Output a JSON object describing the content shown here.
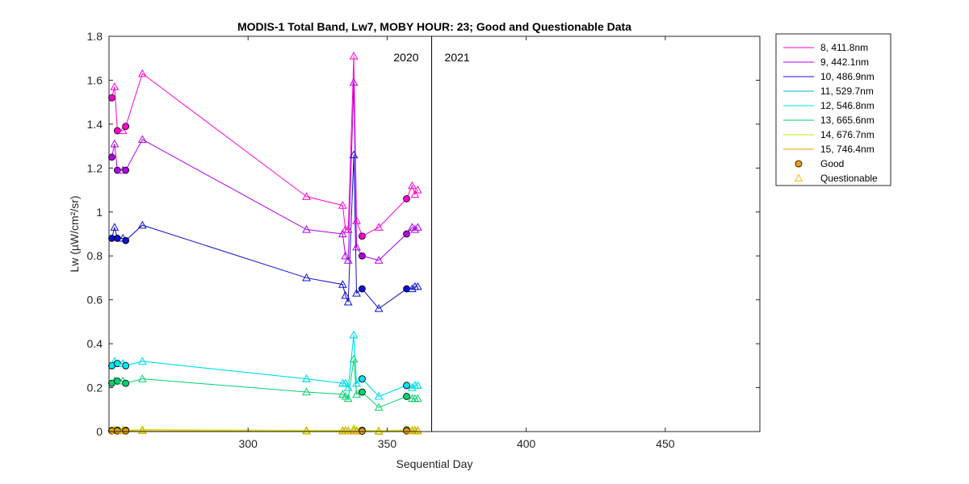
{
  "chart_data": {
    "type": "line",
    "title": "MODIS-1 Total Band,  Lw7, MOBY HOUR: 23;  Good and Questionable Data",
    "xlabel": "Sequential Day",
    "ylabel": "Lw (µW/cm²/sr)",
    "xlim": [
      250,
      484
    ],
    "ylim": [
      0,
      1.8
    ],
    "xticks": [
      300,
      350,
      400,
      450
    ],
    "yticks": [
      0,
      0.2,
      0.4,
      0.6,
      0.8,
      1,
      1.2,
      1.4,
      1.6,
      1.8
    ],
    "grid": false,
    "legend_position": "outside-top-right",
    "year_divider_x": 366,
    "year_labels": [
      "2020",
      "2021"
    ],
    "x": [
      251,
      252,
      253,
      255,
      256,
      262,
      321,
      334,
      335,
      336,
      338,
      339,
      341,
      347,
      357,
      359,
      360,
      361
    ],
    "quality": [
      "good",
      "questionable",
      "good",
      "questionable",
      "good",
      "questionable",
      "questionable",
      "questionable",
      "questionable",
      "questionable",
      "questionable",
      "questionable",
      "good",
      "questionable",
      "good",
      "questionable",
      "questionable",
      "questionable"
    ],
    "series": [
      {
        "name": "8, 411.8nm",
        "color": "#ff00cc",
        "values": [
          1.52,
          1.57,
          1.37,
          1.37,
          1.39,
          1.63,
          1.07,
          1.03,
          0.92,
          0.92,
          1.71,
          0.96,
          0.89,
          0.93,
          1.06,
          1.12,
          1.08,
          1.1
        ]
      },
      {
        "name": "9, 442.1nm",
        "color": "#b000e6",
        "values": [
          1.25,
          1.31,
          1.19,
          1.19,
          1.19,
          1.33,
          0.92,
          0.9,
          0.8,
          0.78,
          1.59,
          0.84,
          0.8,
          0.78,
          0.9,
          0.93,
          0.92,
          0.93
        ]
      },
      {
        "name": "10, 486.9nm",
        "color": "#1010cc",
        "values": [
          0.88,
          0.93,
          0.88,
          0.88,
          0.87,
          0.94,
          0.7,
          0.67,
          0.62,
          0.59,
          1.26,
          0.63,
          0.65,
          0.56,
          0.65,
          0.65,
          0.66,
          0.66
        ]
      },
      {
        "name": "11, 529.7nm",
        "color": "#00b4d8",
        "values": [
          0.3,
          0.32,
          0.31,
          0.31,
          0.3,
          0.32,
          0.24,
          0.22,
          0.22,
          0.2,
          0.44,
          0.22,
          0.24,
          0.16,
          0.21,
          0.2,
          0.21,
          0.21
        ]
      },
      {
        "name": "12, 546.8nm",
        "color": "#00e6f0",
        "values": [
          0.3,
          0.32,
          0.31,
          0.31,
          0.3,
          0.32,
          0.24,
          0.22,
          0.22,
          0.2,
          0.44,
          0.22,
          0.24,
          0.16,
          0.21,
          0.2,
          0.21,
          0.21
        ]
      },
      {
        "name": "13, 665.6nm",
        "color": "#00d26e",
        "values": [
          0.22,
          0.23,
          0.23,
          0.23,
          0.22,
          0.24,
          0.18,
          0.17,
          0.16,
          0.15,
          0.33,
          0.17,
          0.18,
          0.11,
          0.16,
          0.15,
          0.15,
          0.15
        ]
      },
      {
        "name": "14, 676.7nm",
        "color": "#b4f000",
        "values": [
          0.005,
          0.008,
          0.007,
          0.007,
          0.006,
          0.009,
          0.006,
          0.006,
          0.005,
          0.005,
          0.014,
          0.006,
          0.006,
          0.004,
          0.008,
          0.007,
          0.007,
          0.006
        ]
      },
      {
        "name": "15, 746.4nm",
        "color": "#e6a000",
        "values": [
          0.003,
          0.004,
          0.003,
          0.003,
          0.003,
          0.004,
          0.002,
          0.002,
          0.002,
          0.002,
          0.006,
          0.002,
          0.002,
          0.001,
          0.003,
          0.003,
          0.003,
          0.002
        ]
      }
    ],
    "marker_legend": [
      {
        "label": "Good",
        "marker": "circle"
      },
      {
        "label": "Questionable",
        "marker": "triangle"
      }
    ]
  }
}
